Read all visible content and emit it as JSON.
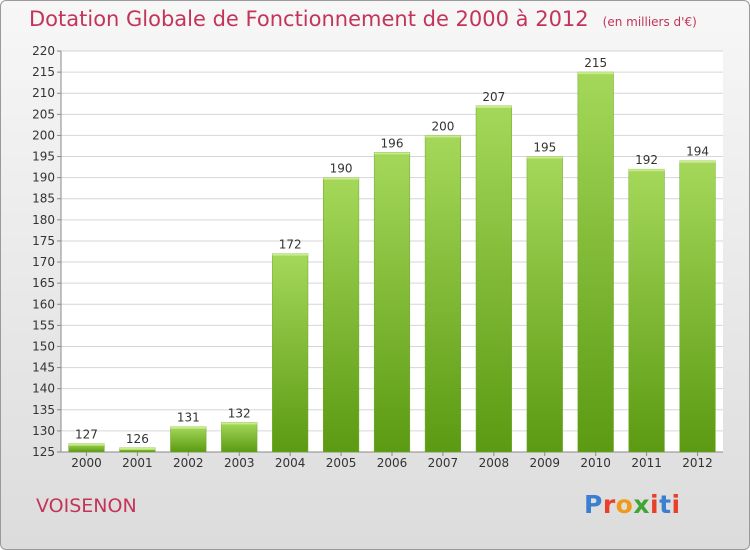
{
  "title": "Dotation Globale de Fonctionnement de 2000 à 2012",
  "unit_note": "(en milliers d'€)",
  "commune": "VOISENON",
  "logo": {
    "text": "Proxiti",
    "colors": [
      "#3a7fd0",
      "#e8402a",
      "#f09a1a",
      "#3fa535",
      "#e8402a",
      "#3a7fd0",
      "#e8402a"
    ]
  },
  "colors": {
    "bar_top": "#a5d85a",
    "bar_bottom": "#5b9a12",
    "accent": "#c4345a"
  },
  "chart_data": {
    "type": "bar",
    "title": "Dotation Globale de Fonctionnement de 2000 à 2012",
    "xlabel": "",
    "ylabel": "",
    "categories": [
      "2000",
      "2001",
      "2002",
      "2003",
      "2004",
      "2005",
      "2006",
      "2007",
      "2008",
      "2009",
      "2010",
      "2011",
      "2012"
    ],
    "values": [
      127,
      126,
      131,
      132,
      172,
      190,
      196,
      200,
      207,
      195,
      215,
      192,
      194
    ],
    "ylim": [
      125,
      220
    ],
    "yticks": [
      125,
      130,
      135,
      140,
      145,
      150,
      155,
      160,
      165,
      170,
      175,
      180,
      185,
      190,
      195,
      200,
      205,
      210,
      215,
      220
    ],
    "grid": true
  }
}
